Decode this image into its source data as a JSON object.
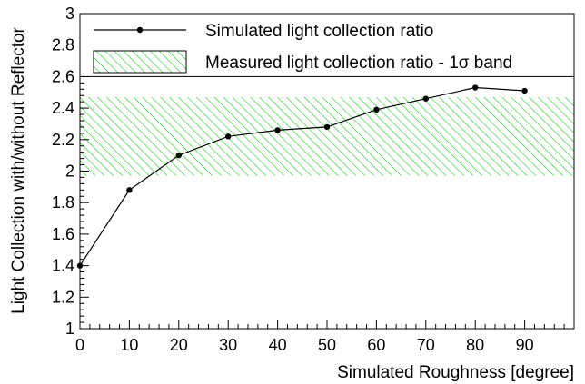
{
  "chart_data": {
    "type": "line",
    "title": "",
    "xlabel": "Simulated Roughness [degree]",
    "ylabel": "Light Collection with/without Reflector",
    "xlim": [
      0,
      100
    ],
    "ylim": [
      1,
      3
    ],
    "x_ticks": [
      0,
      10,
      20,
      30,
      40,
      50,
      60,
      70,
      80,
      90
    ],
    "x_tick_labels": [
      "0",
      "10",
      "20",
      "30",
      "40",
      "50",
      "60",
      "70",
      "80",
      "90"
    ],
    "y_ticks": [
      1,
      1.2,
      1.4,
      1.6,
      1.8,
      2,
      2.2,
      2.4,
      2.6,
      2.8,
      3
    ],
    "y_tick_labels": [
      "1",
      "1.2",
      "1.4",
      "1.6",
      "1.8",
      "2",
      "2.2",
      "2.4",
      "2.6",
      "2.8",
      "3"
    ],
    "grid": false,
    "legend_position": "top",
    "series": [
      {
        "name": "Simulated light collection ratio",
        "x": [
          0,
          10,
          20,
          30,
          40,
          50,
          60,
          70,
          80,
          90
        ],
        "y": [
          1.4,
          1.88,
          2.1,
          2.22,
          2.26,
          2.28,
          2.39,
          2.46,
          2.53,
          2.51
        ],
        "color": "#000000",
        "marker": "circle"
      }
    ],
    "bands": [
      {
        "name": "Measured light collection ratio - 1σ band",
        "y_low": 1.97,
        "y_high": 2.47,
        "color": "#00cc00",
        "fill": "hatched"
      }
    ]
  }
}
